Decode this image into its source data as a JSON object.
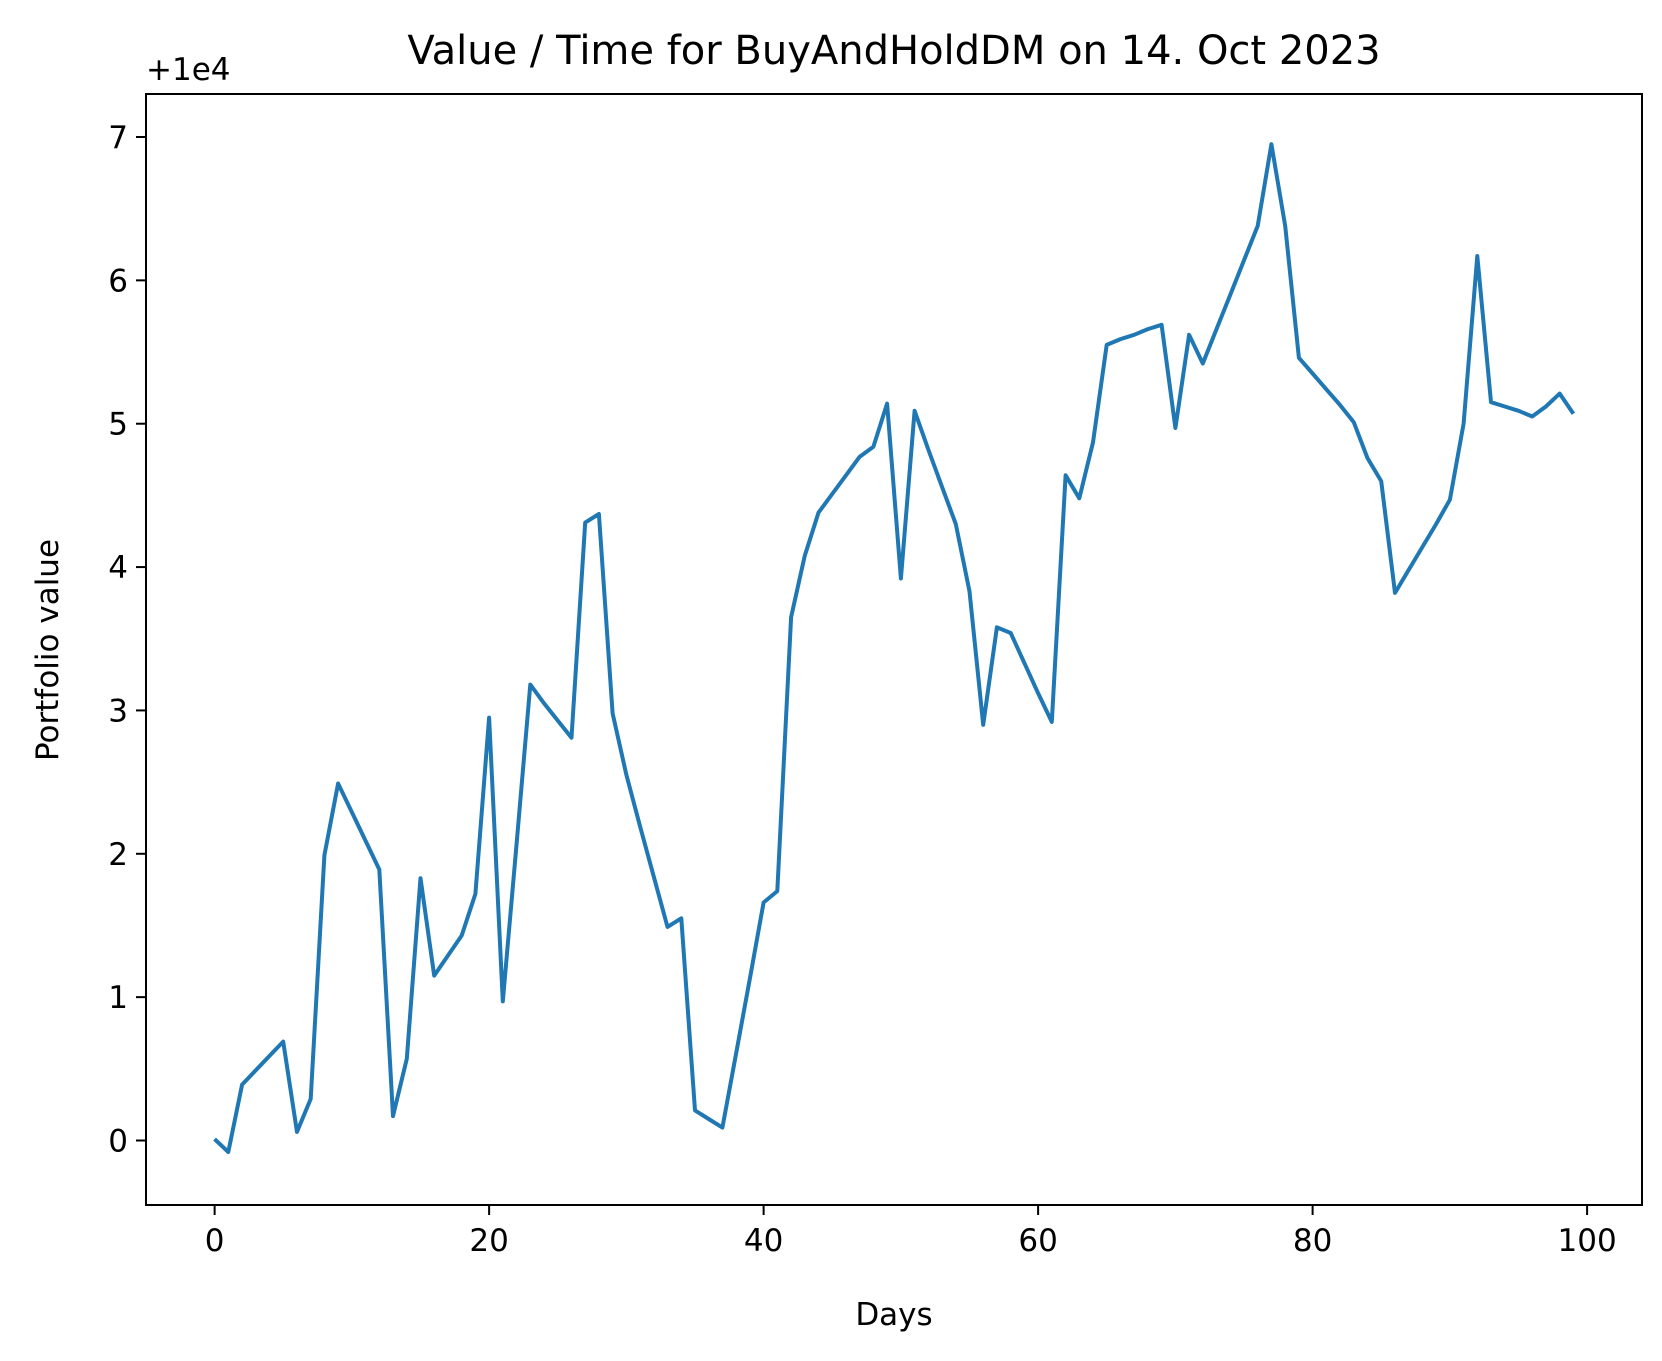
{
  "chart_data": {
    "type": "line",
    "title": "Value / Time for BuyAndHoldDM on 14. Oct 2023",
    "xlabel": "Days",
    "ylabel": "Portfolio value",
    "y_offset_label": "+1e4",
    "xlim": [
      -5,
      104
    ],
    "ylim": [
      -0.45,
      7.3
    ],
    "x_ticks": [
      0,
      20,
      40,
      60,
      80,
      100
    ],
    "x_tick_labels": [
      "0",
      "20",
      "40",
      "60",
      "80",
      "100"
    ],
    "y_ticks": [
      0,
      1,
      2,
      3,
      4,
      5,
      6,
      7
    ],
    "y_tick_labels": [
      "0",
      "1",
      "2",
      "3",
      "4",
      "5",
      "6",
      "7"
    ],
    "grid": false,
    "line_color": "#1f77b4",
    "series": [
      {
        "x": [
          0,
          1,
          2,
          3,
          4,
          5,
          6,
          7,
          8,
          9,
          10,
          11,
          12,
          13,
          14,
          15,
          16,
          17,
          18,
          19,
          20,
          21,
          22,
          23,
          24,
          25,
          26,
          27,
          28,
          29,
          30,
          31,
          32,
          33,
          34,
          35,
          36,
          37,
          38,
          39,
          40,
          41,
          42,
          43,
          44,
          45,
          46,
          47,
          48,
          49,
          50,
          51,
          52,
          53,
          54,
          55,
          56,
          57,
          58,
          59,
          60,
          61,
          62,
          63,
          64,
          65,
          66,
          67,
          68,
          69,
          70,
          71,
          72,
          73,
          74,
          75,
          76,
          77,
          78,
          79,
          80,
          81,
          82,
          83,
          84,
          85,
          86,
          87,
          88,
          89,
          90,
          91,
          92,
          93,
          94,
          95,
          96,
          97,
          98,
          99
        ],
        "y": [
          0.01,
          -0.08,
          0.39,
          0.49,
          0.59,
          0.69,
          0.06,
          0.29,
          1.99,
          2.49,
          2.29,
          2.09,
          1.89,
          0.17,
          0.57,
          1.83,
          1.15,
          1.29,
          1.43,
          1.72,
          2.95,
          0.97,
          2.07,
          3.18,
          3.05,
          2.93,
          2.81,
          4.31,
          4.37,
          2.98,
          2.55,
          2.19,
          1.84,
          1.49,
          1.55,
          0.21,
          0.15,
          0.09,
          0.61,
          1.13,
          1.66,
          1.74,
          3.65,
          4.08,
          4.38,
          4.51,
          4.64,
          4.77,
          4.84,
          5.14,
          3.92,
          5.09,
          4.82,
          4.56,
          4.3,
          3.83,
          2.9,
          3.58,
          3.54,
          3.33,
          3.12,
          2.92,
          4.64,
          4.48,
          4.87,
          5.55,
          5.59,
          5.62,
          5.66,
          5.69,
          4.97,
          5.62,
          5.42,
          5.66,
          5.9,
          6.14,
          6.38,
          6.95,
          6.38,
          5.46,
          5.35,
          5.24,
          5.13,
          5.01,
          4.76,
          4.6,
          3.82,
          3.98,
          4.14,
          4.3,
          4.47,
          5.0,
          6.17,
          5.15,
          5.12,
          5.09,
          5.05,
          5.12,
          5.21,
          5.07
        ]
      }
    ]
  }
}
